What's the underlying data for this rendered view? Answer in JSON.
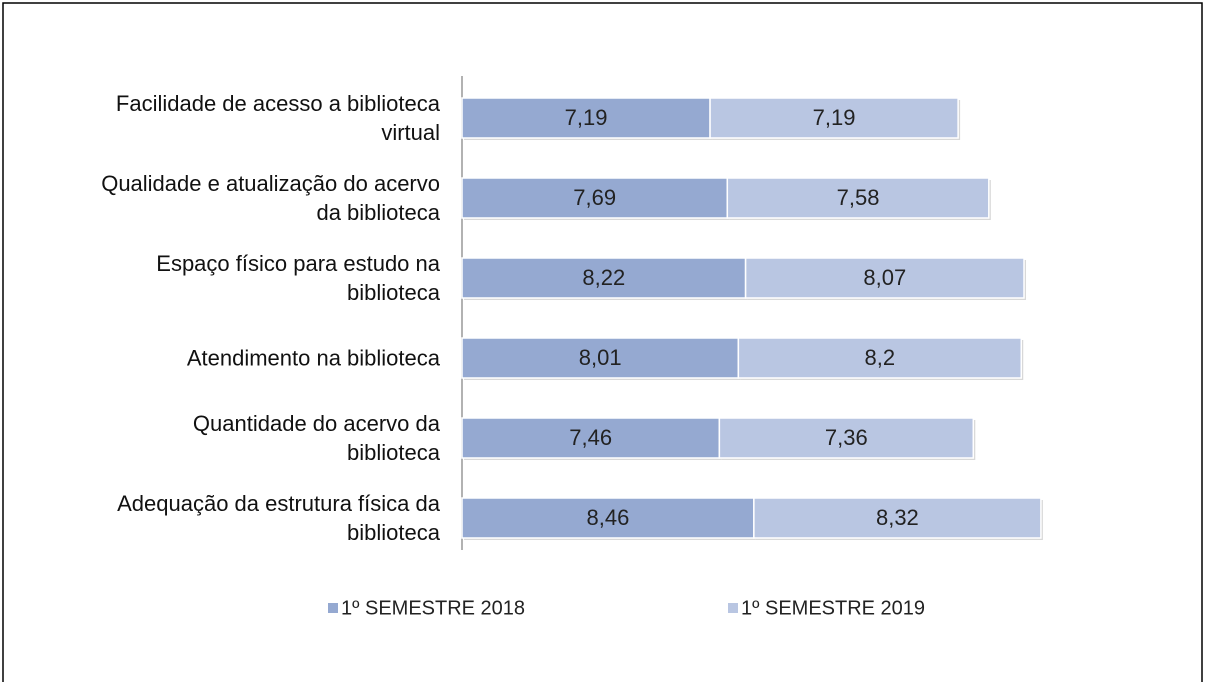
{
  "chart_data": {
    "type": "stacked_bar_horizontal",
    "categories": [
      "Facilidade de acesso a biblioteca virtual",
      "Qualidade e atualização do acervo da biblioteca",
      "Espaço físico para estudo na biblioteca",
      "Atendimento na biblioteca",
      "Quantidade do acervo da biblioteca",
      "Adequação da estrutura física da biblioteca"
    ],
    "series": [
      {
        "name": "1º SEMESTRE 2018",
        "color": "#95a9d1",
        "values": [
          7.19,
          7.69,
          8.22,
          8.01,
          7.46,
          8.46
        ],
        "value_labels": [
          "7,19",
          "7,69",
          "8,22",
          "8,01",
          "7,46",
          "8,46"
        ]
      },
      {
        "name": "1º SEMESTRE 2019",
        "color": "#b9c6e2",
        "values": [
          7.19,
          7.58,
          8.07,
          8.2,
          7.36,
          8.32
        ],
        "value_labels": [
          "7,19",
          "7,58",
          "8,07",
          "8,2",
          "7,36",
          "8,32"
        ]
      }
    ]
  }
}
